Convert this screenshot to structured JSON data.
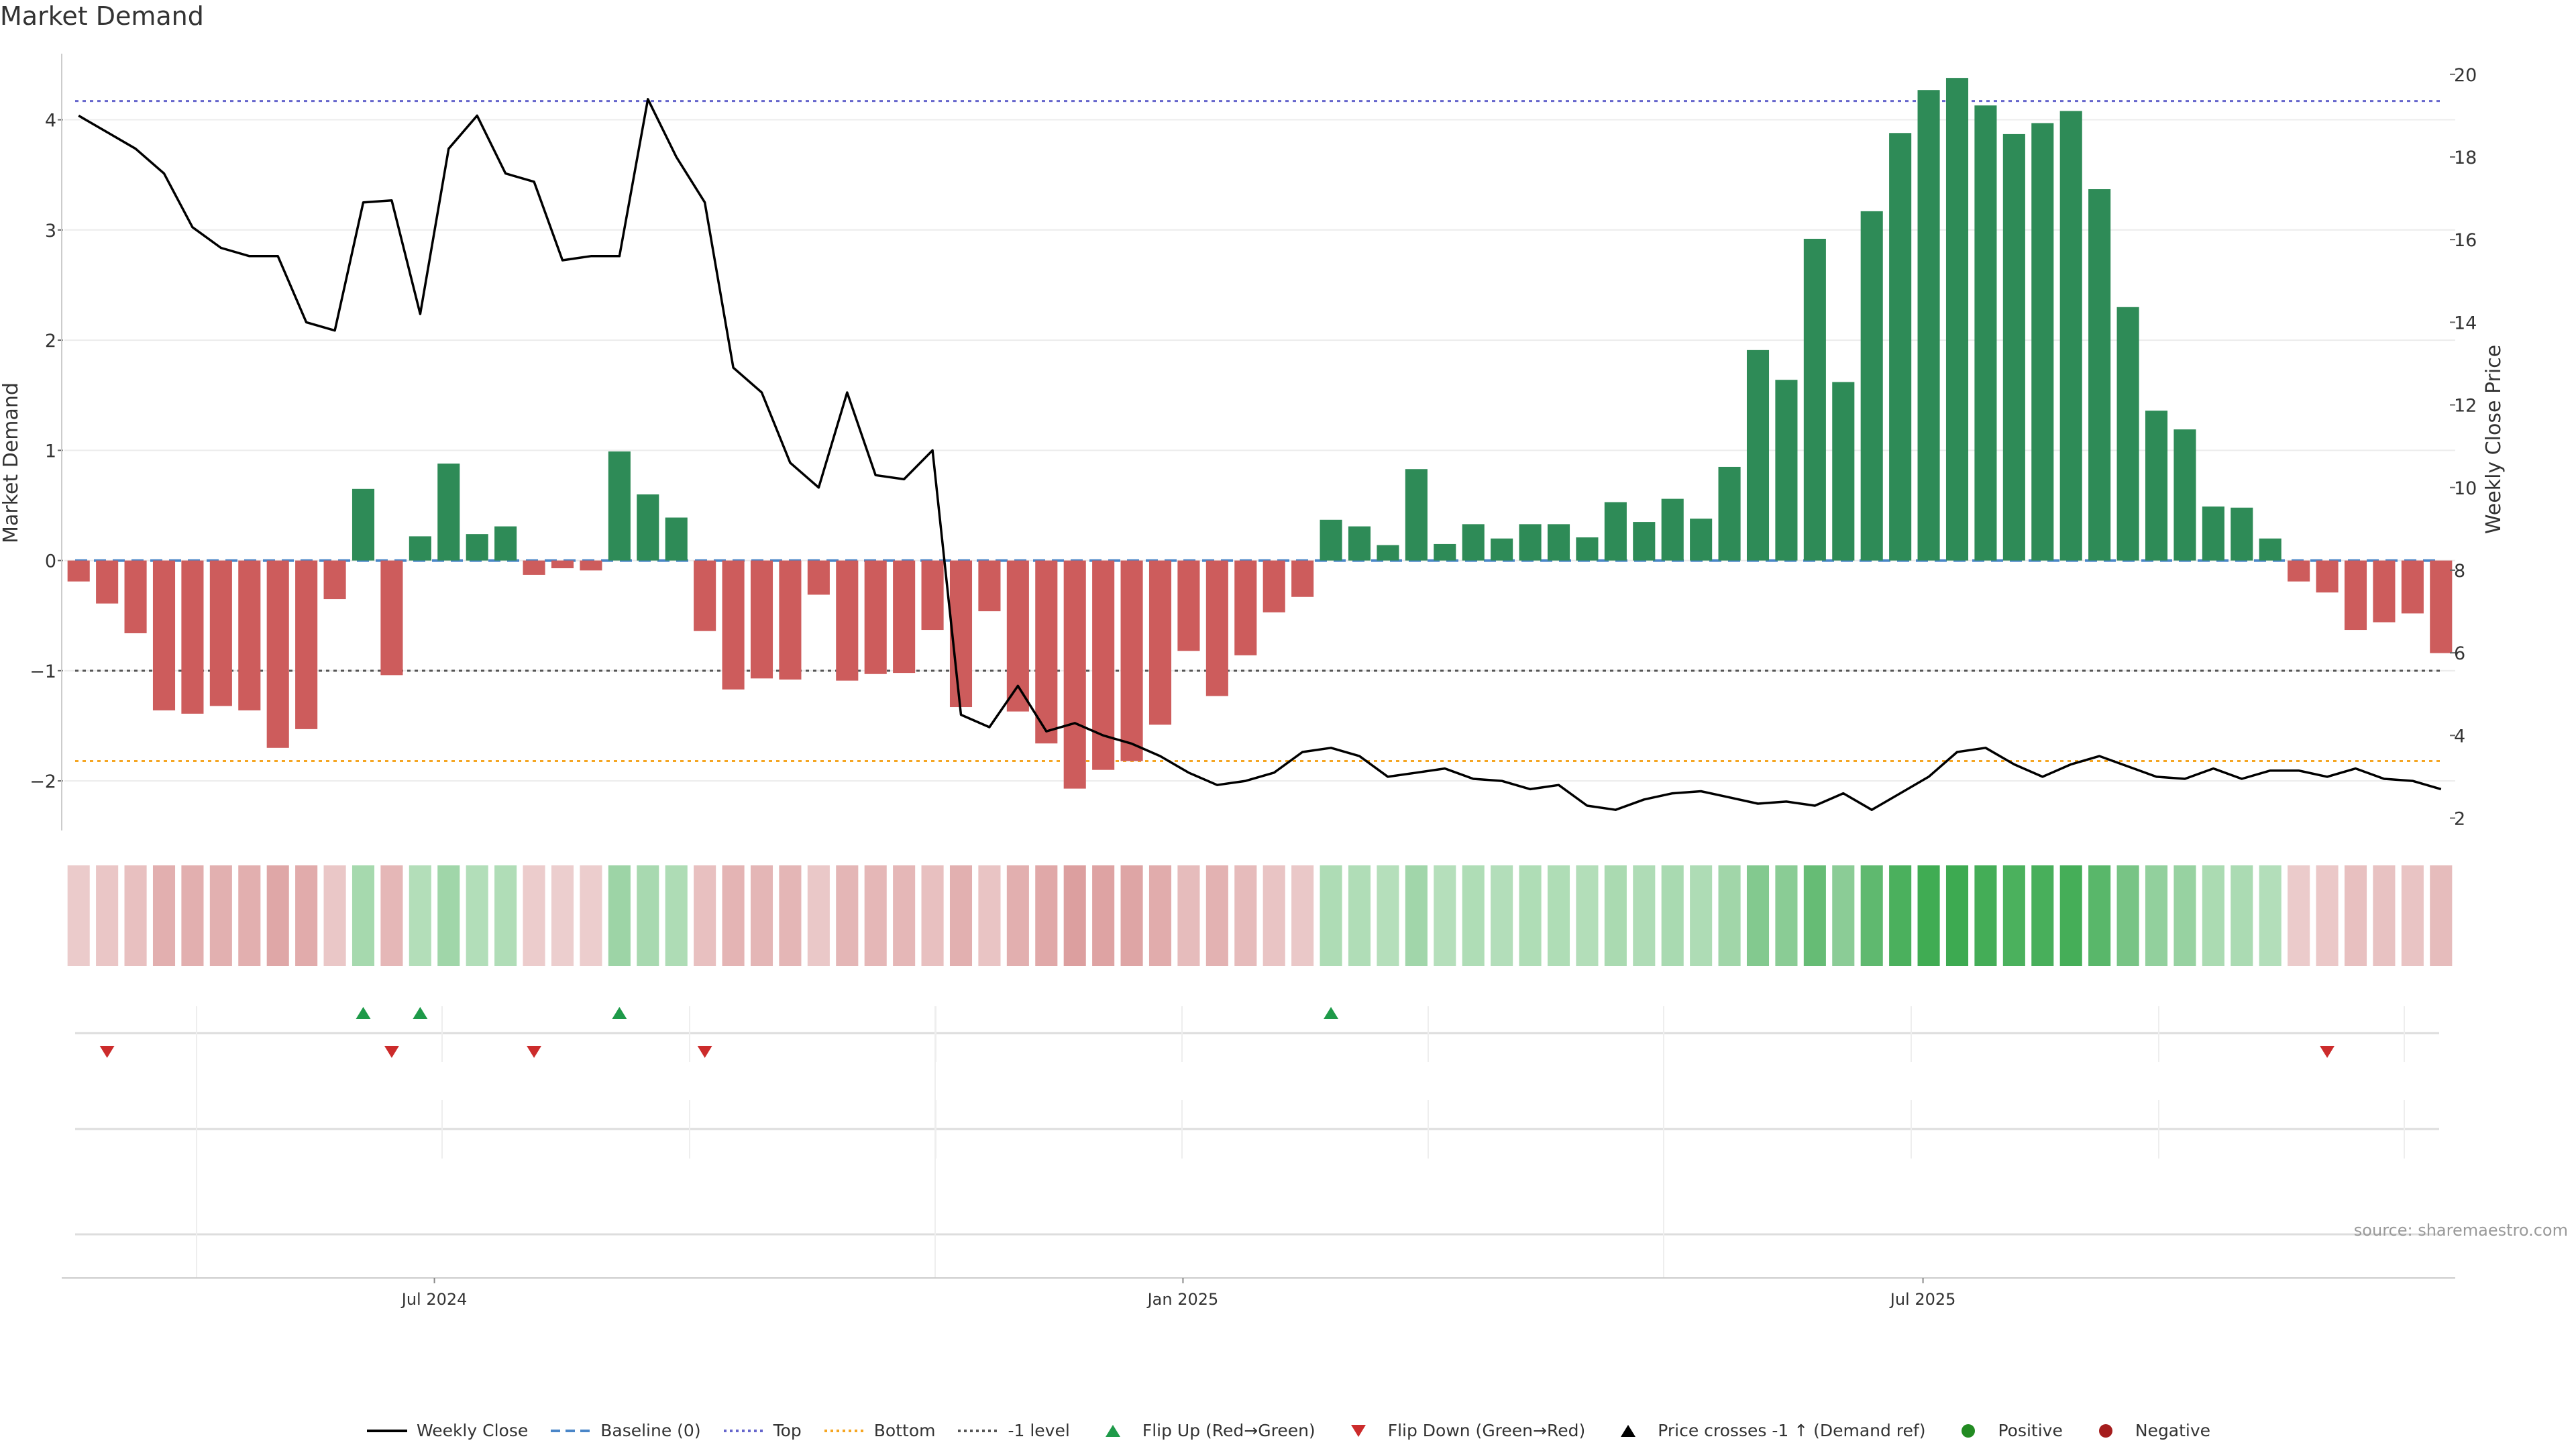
{
  "title": "Market Demand",
  "source": "source: sharemaestro.com",
  "colors": {
    "positive": "#2e8b57",
    "negative": "#cd5c5c",
    "price": "#000000",
    "top": "#6666cc",
    "bottom": "#f5a623",
    "minus_one": "#555555",
    "baseline": "#4a86c8",
    "flip_up": "#1e9a49",
    "flip_down": "#cc2b2b",
    "grid": "#ececec"
  },
  "chart_data": {
    "type": "bar",
    "title": "Market Demand",
    "ylabel": "Market Demand",
    "y2label": "Weekly Close Price",
    "ylim": [
      -2.45,
      4.6
    ],
    "y2lim": [
      1.7,
      20.5
    ],
    "yticks": [
      -2,
      -1,
      0,
      1,
      2,
      3,
      4
    ],
    "ytick_labels": [
      "−2",
      "−1",
      "0",
      "1",
      "2",
      "3",
      "4"
    ],
    "y2ticks": [
      2,
      4,
      6,
      8,
      10,
      12,
      14,
      16,
      18,
      20
    ],
    "y2tick_labels": [
      "2",
      "4",
      "6",
      "8",
      "10",
      "12",
      "14",
      "16",
      "18",
      "20"
    ],
    "xtick_labels": [
      "Jul 2024",
      "Jan 2025",
      "Jul 2025"
    ],
    "xtick_index": [
      13,
      39.3,
      65.3
    ],
    "reference_lines": {
      "top": 4.17,
      "bottom": -1.82,
      "minus_one": -1.0,
      "baseline": 0
    },
    "series": [
      {
        "name": "Market Demand",
        "values": [
          -0.19,
          -0.39,
          -0.66,
          -1.36,
          -1.39,
          -1.32,
          -1.36,
          -1.7,
          -1.53,
          -0.35,
          0.65,
          -1.04,
          0.22,
          0.88,
          0.24,
          0.31,
          -0.13,
          -0.07,
          -0.09,
          0.99,
          0.6,
          0.39,
          -0.64,
          -1.17,
          -1.07,
          -1.08,
          -0.31,
          -1.09,
          -1.03,
          -1.02,
          -0.63,
          -1.33,
          -0.46,
          -1.37,
          -1.66,
          -2.07,
          -1.9,
          -1.82,
          -1.49,
          -0.82,
          -1.23,
          -0.86,
          -0.47,
          -0.33,
          0.37,
          0.31,
          0.14,
          0.83,
          0.15,
          0.33,
          0.2,
          0.33,
          0.33,
          0.21,
          0.53,
          0.35,
          0.56,
          0.38,
          0.85,
          1.91,
          1.64,
          2.92,
          1.62,
          3.17,
          3.88,
          4.27,
          4.38,
          4.13,
          3.87,
          3.97,
          4.08,
          3.37,
          2.3,
          1.36,
          1.19,
          0.49,
          0.48,
          0.2,
          -0.19,
          -0.29,
          -0.63,
          -0.56,
          -0.48,
          -0.84
        ]
      },
      {
        "name": "Weekly Close",
        "values": [
          19.0,
          18.6,
          18.2,
          17.6,
          16.3,
          15.8,
          15.6,
          15.6,
          14.0,
          13.8,
          16.9,
          16.95,
          14.2,
          18.2,
          19.0,
          17.6,
          17.4,
          15.5,
          15.6,
          15.6,
          19.4,
          18.0,
          16.9,
          12.9,
          12.3,
          10.6,
          10.0,
          12.3,
          10.3,
          10.2,
          10.9,
          4.5,
          4.2,
          5.2,
          4.1,
          4.3,
          4.0,
          3.8,
          3.5,
          3.1,
          2.8,
          2.9,
          3.1,
          3.6,
          3.7,
          3.5,
          3.0,
          3.1,
          3.2,
          2.95,
          2.9,
          2.7,
          2.8,
          2.3,
          2.2,
          2.45,
          2.6,
          2.65,
          2.5,
          2.35,
          2.4,
          2.3,
          2.6,
          2.2,
          2.6,
          3.0,
          3.6,
          3.7,
          3.3,
          3.0,
          3.3,
          3.5,
          3.25,
          3.0,
          2.95,
          3.2,
          2.95,
          3.15,
          3.15,
          3.0,
          3.2,
          2.95,
          2.9,
          2.7
        ]
      }
    ],
    "flip_up_index": [
      10,
      12,
      19,
      44
    ],
    "flip_down_index": [
      1,
      11,
      16,
      22,
      79
    ]
  },
  "legend": [
    {
      "label": "Weekly Close",
      "symbol": "line-solid",
      "color": "#000000"
    },
    {
      "label": "Baseline (0)",
      "symbol": "line-dashed",
      "color": "#4a86c8"
    },
    {
      "label": "Top",
      "symbol": "line-dotted",
      "color": "#6666cc"
    },
    {
      "label": "Bottom",
      "symbol": "line-dotted",
      "color": "#f5a623"
    },
    {
      "label": "-1 level",
      "symbol": "line-dotted",
      "color": "#555555"
    },
    {
      "label": "Flip Up (Red→Green)",
      "symbol": "triangle-up",
      "color": "#1e9a49"
    },
    {
      "label": "Flip Down (Green→Red)",
      "symbol": "triangle-down",
      "color": "#cc2b2b"
    },
    {
      "label": "Price crosses -1 ↑ (Demand ref)",
      "symbol": "triangle-up",
      "color": "#000000"
    },
    {
      "label": "Positive",
      "symbol": "circle",
      "color": "#228b22"
    },
    {
      "label": "Negative",
      "symbol": "circle",
      "color": "#a51d1d"
    }
  ]
}
